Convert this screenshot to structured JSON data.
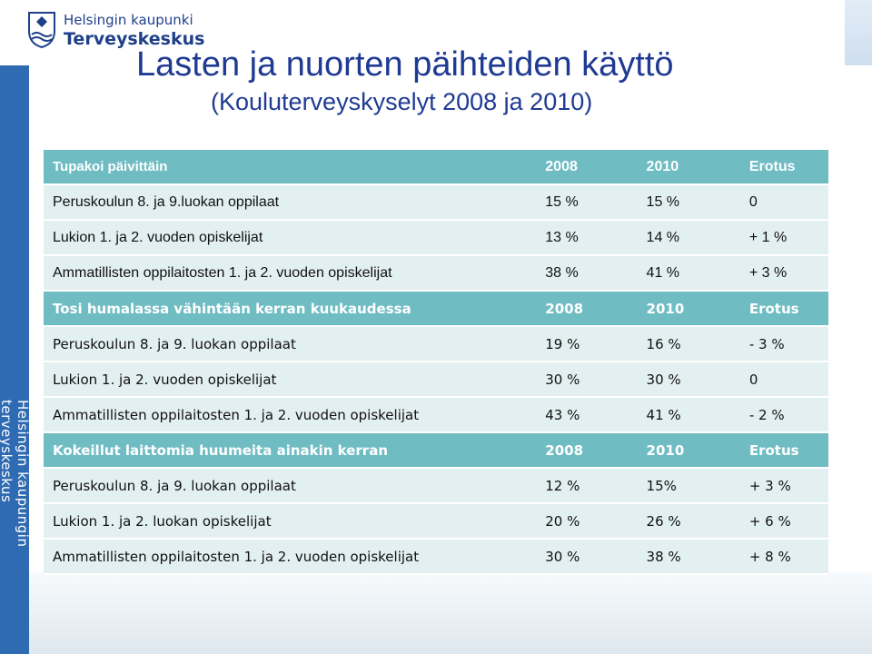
{
  "logo": {
    "line1": "Helsingin kaupunki",
    "line2": "Terveyskeskus"
  },
  "title": "Lasten ja nuorten päihteiden käyttö",
  "subtitle": "(Kouluterveyskyselyt 2008 ja 2010)",
  "side_text": "Helsingin kaupungin terveyskeskus",
  "colors": {
    "header_bg": "#6fbcc3",
    "row_bg": "#e3f0f1",
    "title": "#1f3a93",
    "left_bar": "#2f6bb2"
  },
  "sections": [
    {
      "header": {
        "label": "Tupakoi päivittäin",
        "c2008": "2008",
        "c2010": "2010",
        "diff": "Erotus"
      },
      "rows": [
        {
          "label": "Peruskoulun 8. ja 9.luokan oppilaat",
          "c2008": "15 %",
          "c2010": "15 %",
          "diff": "0"
        },
        {
          "label": "Lukion 1. ja 2. vuoden opiskelijat",
          "c2008": "13 %",
          "c2010": "14 %",
          "diff": "+ 1 %"
        },
        {
          "label": "Ammatillisten oppilaitosten 1. ja 2. vuoden opiskelijat",
          "c2008": "38 %",
          "c2010": "41 %",
          "diff": "+ 3 %"
        }
      ]
    },
    {
      "header": {
        "label": "Tosi humalassa vähintään kerran kuukaudessa",
        "c2008": "2008",
        "c2010": "2010",
        "diff": "Erotus"
      },
      "rows": [
        {
          "label": "Peruskoulun 8. ja 9. luokan oppilaat",
          "c2008": "19 %",
          "c2010": "16 %",
          "diff": "- 3 %"
        },
        {
          "label": "Lukion 1. ja 2. vuoden opiskelijat",
          "c2008": "30 %",
          "c2010": "30 %",
          "diff": "0"
        },
        {
          "label": "Ammatillisten oppilaitosten 1. ja 2. vuoden opiskelijat",
          "c2008": "43 %",
          "c2010": "41 %",
          "diff": "- 2 %"
        }
      ]
    },
    {
      "header": {
        "label": "Kokeillut laittomia huumeita ainakin kerran",
        "c2008": "2008",
        "c2010": "2010",
        "diff": "Erotus"
      },
      "rows": [
        {
          "label": "Peruskoulun 8. ja 9. luokan oppilaat",
          "c2008": "12 %",
          "c2010": "15%",
          "diff": "+ 3  %"
        },
        {
          "label": "Lukion 1. ja 2. luokan opiskelijat",
          "c2008": "20 %",
          "c2010": "26 %",
          "diff": "+ 6 %"
        },
        {
          "label": "Ammatillisten oppilaitosten 1. ja 2. vuoden opiskelijat",
          "c2008": "30 %",
          "c2010": "38 %",
          "diff": "+ 8 %"
        }
      ]
    }
  ]
}
